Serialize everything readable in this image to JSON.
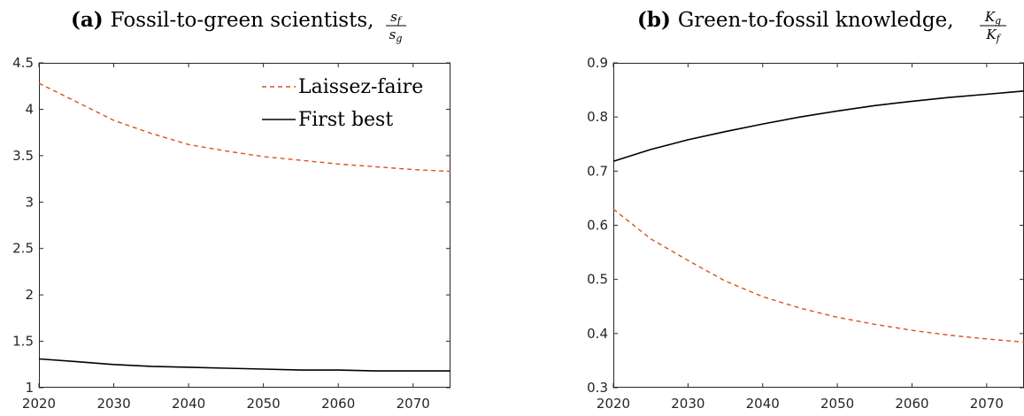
{
  "colors": {
    "laissez_faire": "#D95319",
    "first_best": "#000000"
  },
  "chart_data": [
    {
      "type": "line",
      "panel": "(a)",
      "title": "Fossil-to-green scientists,",
      "title_fraction": {
        "numerator": "s_f",
        "denominator": "s_g"
      },
      "xlim": [
        2020,
        2075
      ],
      "ylim": [
        1,
        4.5
      ],
      "xticks": [
        2020,
        2030,
        2040,
        2050,
        2060,
        2070
      ],
      "yticks": [
        1,
        1.5,
        2,
        2.5,
        3,
        3.5,
        4,
        4.5
      ],
      "grid": false,
      "legend_position": "top-right",
      "series": [
        {
          "name": "Laissez-faire",
          "style": "dashed",
          "color": "#D95319",
          "x": [
            2020,
            2025,
            2030,
            2035,
            2040,
            2045,
            2050,
            2055,
            2060,
            2065,
            2070,
            2075
          ],
          "y": [
            4.28,
            4.08,
            3.88,
            3.74,
            3.62,
            3.55,
            3.49,
            3.45,
            3.41,
            3.38,
            3.35,
            3.33
          ]
        },
        {
          "name": "First best",
          "style": "solid",
          "color": "#000000",
          "x": [
            2020,
            2025,
            2030,
            2035,
            2040,
            2045,
            2050,
            2055,
            2060,
            2065,
            2070,
            2075
          ],
          "y": [
            1.31,
            1.28,
            1.25,
            1.23,
            1.22,
            1.21,
            1.2,
            1.19,
            1.19,
            1.18,
            1.18,
            1.18
          ]
        }
      ]
    },
    {
      "type": "line",
      "panel": "(b)",
      "title": "Green-to-fossil knowledge,",
      "title_fraction": {
        "numerator": "K_g",
        "denominator": "K_f"
      },
      "xlim": [
        2020,
        2075
      ],
      "ylim": [
        0.3,
        0.9
      ],
      "xticks": [
        2020,
        2030,
        2040,
        2050,
        2060,
        2070
      ],
      "yticks": [
        0.3,
        0.4,
        0.5,
        0.6,
        0.7,
        0.8,
        0.9
      ],
      "grid": false,
      "series": [
        {
          "name": "Laissez-faire",
          "style": "dashed",
          "color": "#D95319",
          "x": [
            2020,
            2025,
            2030,
            2035,
            2040,
            2045,
            2050,
            2055,
            2060,
            2065,
            2070,
            2075
          ],
          "y": [
            0.63,
            0.575,
            0.535,
            0.497,
            0.468,
            0.447,
            0.43,
            0.417,
            0.406,
            0.397,
            0.39,
            0.384
          ]
        },
        {
          "name": "First best",
          "style": "solid",
          "color": "#000000",
          "x": [
            2020,
            2025,
            2030,
            2035,
            2040,
            2045,
            2050,
            2055,
            2060,
            2065,
            2070,
            2075
          ],
          "y": [
            0.718,
            0.74,
            0.758,
            0.773,
            0.787,
            0.8,
            0.811,
            0.821,
            0.829,
            0.836,
            0.842,
            0.848
          ]
        }
      ]
    }
  ]
}
